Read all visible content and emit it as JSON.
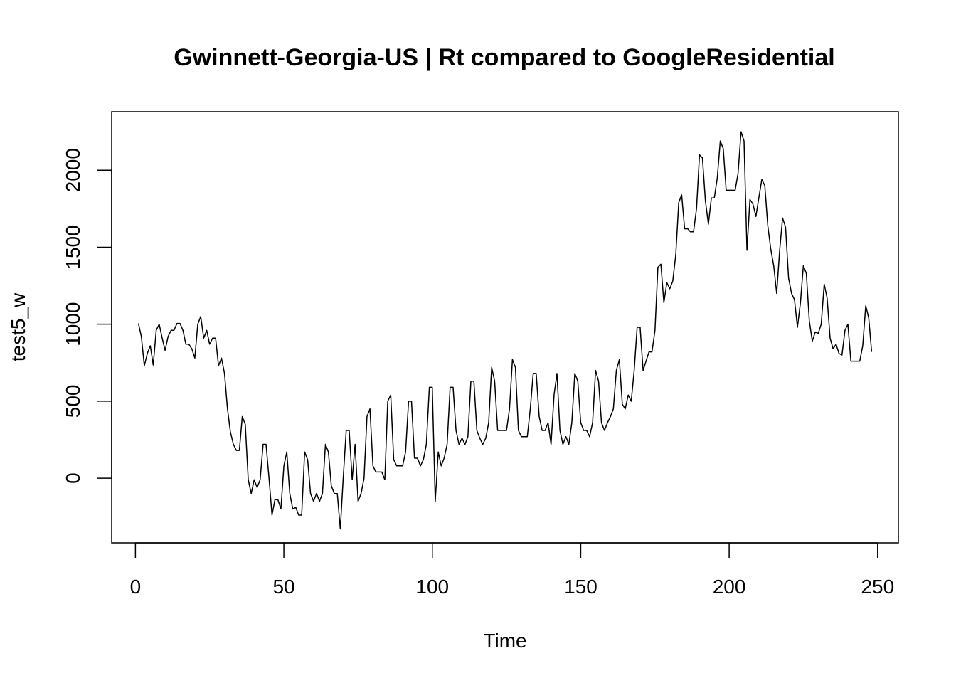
{
  "chart_data": {
    "type": "line",
    "title": "Gwinnett-Georgia-US | Rt compared to GoogleResidential",
    "xlabel": "Time",
    "ylabel": "test5_w",
    "xlim": [
      -8,
      257
    ],
    "ylim": [
      -420,
      2380
    ],
    "x_ticks": [
      0,
      50,
      100,
      150,
      200,
      250
    ],
    "y_ticks": [
      0,
      500,
      1000,
      1500,
      2000
    ],
    "grid": false,
    "legend": "none",
    "line_color": "#000000",
    "series": [
      {
        "x_start": 1,
        "values": [
          1005,
          920,
          730,
          810,
          860,
          735,
          960,
          1000,
          910,
          830,
          920,
          960,
          960,
          1005,
          1005,
          960,
          870,
          870,
          840,
          780,
          1000,
          1050,
          910,
          960,
          870,
          910,
          910,
          730,
          780,
          680,
          450,
          300,
          220,
          180,
          180,
          400,
          350,
          -10,
          -100,
          -10,
          -60,
          -10,
          220,
          220,
          0,
          -240,
          -140,
          -140,
          -200,
          80,
          170,
          -100,
          -200,
          -190,
          -240,
          -240,
          170,
          120,
          -100,
          -150,
          -100,
          -150,
          -100,
          220,
          170,
          -50,
          -100,
          -100,
          -330,
          0,
          310,
          310,
          -10,
          220,
          -150,
          -100,
          0,
          400,
          450,
          80,
          40,
          40,
          40,
          -10,
          500,
          540,
          120,
          80,
          80,
          80,
          170,
          500,
          500,
          130,
          130,
          80,
          120,
          220,
          590,
          590,
          -150,
          170,
          80,
          130,
          220,
          590,
          590,
          310,
          220,
          260,
          220,
          270,
          630,
          630,
          310,
          260,
          220,
          260,
          360,
          720,
          630,
          310,
          310,
          310,
          310,
          450,
          770,
          720,
          310,
          270,
          270,
          270,
          450,
          680,
          680,
          400,
          310,
          310,
          360,
          220,
          540,
          680,
          310,
          220,
          270,
          220,
          360,
          680,
          630,
          360,
          310,
          310,
          270,
          360,
          700,
          630,
          360,
          310,
          360,
          400,
          450,
          700,
          770,
          480,
          450,
          540,
          500,
          700,
          980,
          980,
          700,
          760,
          820,
          820,
          960,
          1370,
          1390,
          1140,
          1270,
          1230,
          1280,
          1450,
          1790,
          1840,
          1620,
          1620,
          1600,
          1600,
          1750,
          2100,
          2080,
          1800,
          1650,
          1820,
          1820,
          1950,
          2190,
          2140,
          1870,
          1870,
          1870,
          1870,
          1980,
          2250,
          2190,
          1480,
          1810,
          1780,
          1700,
          1820,
          1940,
          1900,
          1640,
          1490,
          1380,
          1200,
          1480,
          1690,
          1630,
          1300,
          1200,
          1160,
          980,
          1140,
          1380,
          1330,
          1020,
          890,
          950,
          940,
          1000,
          1260,
          1170,
          910,
          840,
          870,
          810,
          800,
          960,
          1000,
          760,
          760,
          760,
          760,
          860,
          1120,
          1040,
          820
        ]
      }
    ]
  }
}
